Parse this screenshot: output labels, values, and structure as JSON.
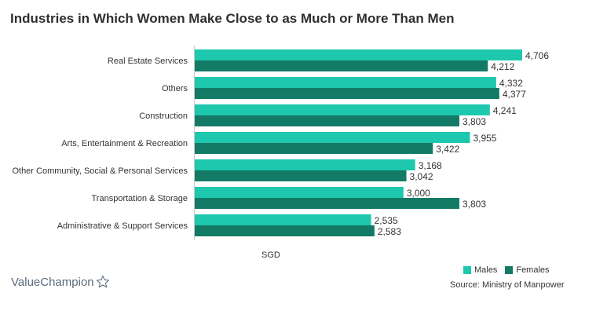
{
  "brand": {
    "name": "ValueChampion"
  },
  "source": "Source: Ministry of Manpower",
  "colors": {
    "males": "#1ec8ae",
    "females": "#137a66"
  },
  "chart_data": {
    "type": "bar",
    "orientation": "horizontal",
    "title": "Industries in Which Women Make Close to as Much or More Than Men",
    "xlabel": "SGD",
    "ylabel": "",
    "grid": false,
    "legend_position": "bottom-right",
    "xlim": [
      0,
      4706
    ],
    "categories": [
      "Real Estate Services",
      "Others",
      "Construction",
      "Arts, Entertainment & Recreation",
      "Other Community, Social & Personal Services",
      "Transportation & Storage",
      "Administrative & Support Services"
    ],
    "series": [
      {
        "name": "Males",
        "values": [
          4706,
          4332,
          4241,
          3955,
          3168,
          3000,
          2535
        ],
        "labels": [
          "4,706",
          "4,332",
          "4,241",
          "3,955",
          "3,168",
          "3,000",
          "2,535"
        ]
      },
      {
        "name": "Females",
        "values": [
          4212,
          4377,
          3803,
          3422,
          3042,
          3803,
          2583
        ],
        "labels": [
          "4,212",
          "4,377",
          "3,803",
          "3,422",
          "3,042",
          "3,803",
          "2,583"
        ]
      }
    ]
  }
}
